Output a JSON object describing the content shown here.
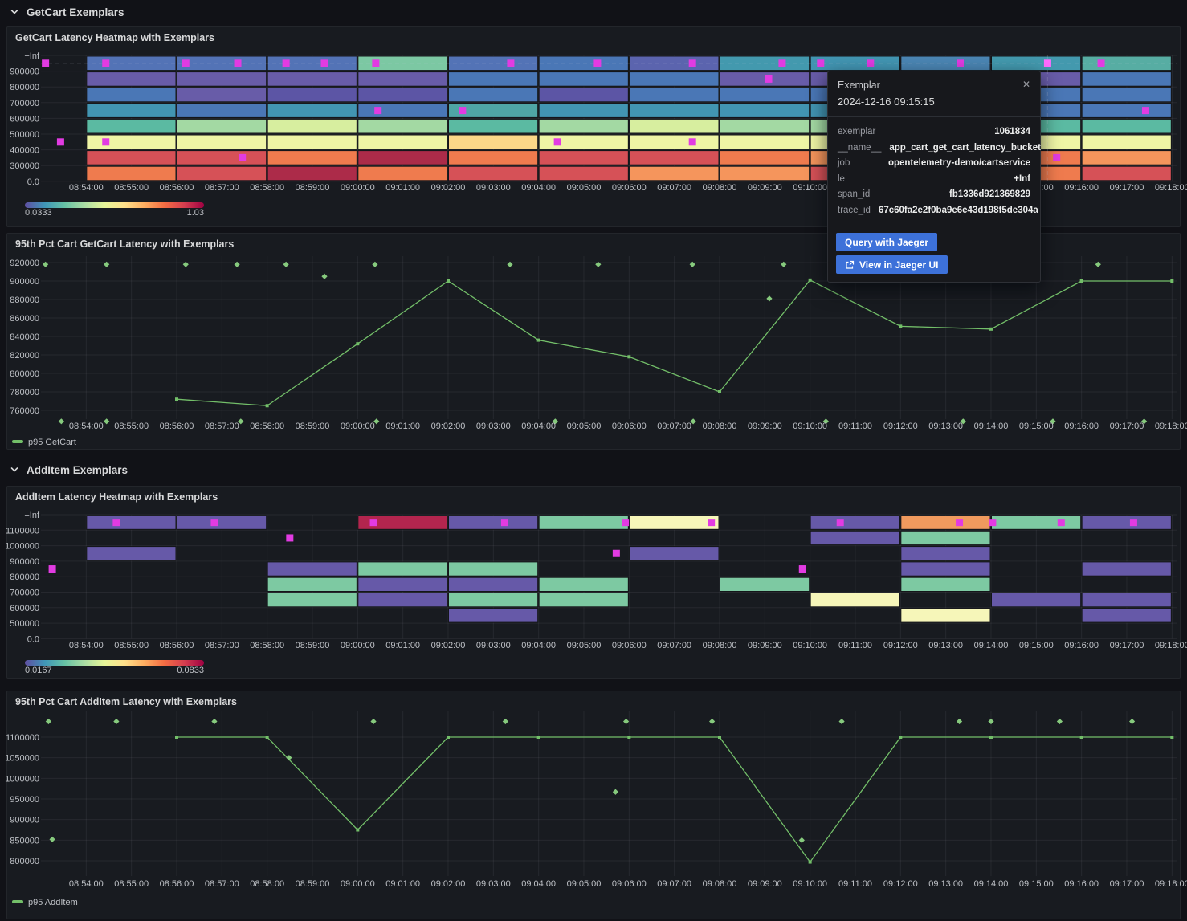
{
  "sections": [
    {
      "title": "GetCart Exemplars"
    },
    {
      "title": "AddItem Exemplars"
    }
  ],
  "time_axis": {
    "start": "08:53:00",
    "labels": [
      "08:54:00",
      "08:55:00",
      "08:56:00",
      "08:57:00",
      "08:58:00",
      "08:59:00",
      "09:00:00",
      "09:01:00",
      "09:02:00",
      "09:03:00",
      "09:04:00",
      "09:05:00",
      "09:06:00",
      "09:07:00",
      "09:08:00",
      "09:09:00",
      "09:10:00",
      "09:11:00",
      "09:12:00",
      "09:13:00",
      "09:14:00",
      "09:15:00",
      "09:16:00",
      "09:17:00",
      "09:18:00"
    ]
  },
  "colors": {
    "exemplar": "#e23be2",
    "exemplar_highlight": "#ff6bff",
    "series_green": "#73bf69",
    "accent_blue": "#3d71d9"
  },
  "chart_data": [
    {
      "type": "heatmap",
      "title": "GetCart Latency Heatmap with Exemplars",
      "y_labels": [
        "+Inf",
        "900000",
        "800000",
        "700000",
        "600000",
        "500000",
        "400000",
        "300000",
        "0.0"
      ],
      "legend": {
        "min": "0.0333",
        "max": "1.03"
      },
      "column_minutes": 2,
      "columns": [
        {
          "start": "08:54:00",
          "colors": [
            "#5373b6",
            "#685ca8",
            "#4a77b6",
            "#4295b2",
            "#5bbaa2",
            "#eff5a5",
            "#d65157",
            "#ef7b4e"
          ]
        },
        {
          "start": "08:56:00",
          "colors": [
            "#5373b6",
            "#685ca8",
            "#685ca8",
            "#4a77b6",
            "#a3d9a3",
            "#eff5a5",
            "#d65157",
            "#d65157"
          ]
        },
        {
          "start": "08:58:00",
          "colors": [
            "#5373b6",
            "#685ca8",
            "#5c55a5",
            "#4295b2",
            "#d7ee9f",
            "#eff5a5",
            "#ef7b4e",
            "#ac2b49"
          ]
        },
        {
          "start": "09:00:00",
          "colors": [
            "#7cc8a3",
            "#685ca8",
            "#5c55a5",
            "#4a77b6",
            "#a3d9a3",
            "#eff5a5",
            "#ac2b49",
            "#ef7b4e"
          ]
        },
        {
          "start": "09:02:00",
          "colors": [
            "#5373b6",
            "#4a77b6",
            "#4a77b6",
            "#4fa5a5",
            "#5bbaa2",
            "#fcd788",
            "#ef7b4e",
            "#d65157"
          ]
        },
        {
          "start": "09:04:00",
          "colors": [
            "#4a77b6",
            "#4a77b6",
            "#5c55a5",
            "#4295b2",
            "#a3d9a3",
            "#eff5a5",
            "#d65157",
            "#d65157"
          ]
        },
        {
          "start": "09:06:00",
          "colors": [
            "#5b64ae",
            "#4a77b6",
            "#4a77b6",
            "#4295b2",
            "#d7ee9f",
            "#eff5a5",
            "#d65157",
            "#f5955c"
          ]
        },
        {
          "start": "09:08:00",
          "colors": [
            "#4399ae",
            "#685ca8",
            "#4a77b6",
            "#4295b2",
            "#a3d9a3",
            "#eff5a5",
            "#ef7b4e",
            "#f5955c"
          ]
        },
        {
          "start": "09:10:00",
          "colors": [
            "#4295b2",
            "#685ca8",
            "#4a77b6",
            "#4295b2",
            "#a3d9a3",
            "#eff5a5",
            "#f5955c",
            "#d65157"
          ]
        },
        {
          "start": "09:12:00",
          "colors": [
            "#4b86b4",
            "#685ca8",
            "#4a77b6",
            "#4295b2",
            "#a3d9a3",
            "#eff5a5",
            "#ef7b4e",
            "#f5955c"
          ]
        },
        {
          "start": "09:14:00",
          "colors": [
            "#4399ae",
            "#685ca8",
            "#4a77b6",
            "#4a77b6",
            "#5bbaa2",
            "#eff5a5",
            "#ef7b4e",
            "#ef7b4e"
          ]
        },
        {
          "start": "09:16:00",
          "colors": [
            "#57ada3",
            "#4a77b6",
            "#4a77b6",
            "#4a77b6",
            "#5bbaa2",
            "#eff5a5",
            "#f5955c",
            "#d65157"
          ]
        }
      ],
      "exemplars": [
        {
          "t": "08:53:06",
          "row": 0
        },
        {
          "t": "08:54:26",
          "row": 0
        },
        {
          "t": "08:56:12",
          "row": 0
        },
        {
          "t": "08:57:21",
          "row": 0
        },
        {
          "t": "08:58:25",
          "row": 0
        },
        {
          "t": "08:59:16",
          "row": 0
        },
        {
          "t": "09:00:24",
          "row": 0
        },
        {
          "t": "09:03:23",
          "row": 0
        },
        {
          "t": "09:05:18",
          "row": 0
        },
        {
          "t": "09:07:24",
          "row": 0
        },
        {
          "t": "09:09:23",
          "row": 0
        },
        {
          "t": "09:10:14",
          "row": 0
        },
        {
          "t": "09:11:20",
          "row": 0
        },
        {
          "t": "09:13:19",
          "row": 0
        },
        {
          "t": "09:15:15",
          "row": 0,
          "highlight": true
        },
        {
          "t": "09:16:26",
          "row": 0
        },
        {
          "t": "09:09:05",
          "row": 1
        },
        {
          "t": "09:00:27",
          "row": 3
        },
        {
          "t": "09:02:19",
          "row": 3
        },
        {
          "t": "09:17:25",
          "row": 3
        },
        {
          "t": "08:53:26",
          "row": 5
        },
        {
          "t": "08:54:26",
          "row": 5
        },
        {
          "t": "09:04:25",
          "row": 5
        },
        {
          "t": "09:07:24",
          "row": 5
        },
        {
          "t": "08:57:27",
          "row": 6
        },
        {
          "t": "09:15:27",
          "row": 6
        }
      ],
      "guides": {
        "h_row": 0,
        "v_time": "09:15:15"
      }
    },
    {
      "type": "line",
      "title": "95th Pct Cart GetCart Latency with Exemplars",
      "y_ticks": [
        "920000",
        "900000",
        "880000",
        "860000",
        "840000",
        "820000",
        "800000",
        "780000",
        "760000"
      ],
      "series": {
        "name": "p95 GetCart",
        "color": "#73bf69",
        "points": [
          [
            "08:56:00",
            772000
          ],
          [
            "08:58:00",
            765000
          ],
          [
            "09:00:00",
            832000
          ],
          [
            "09:02:00",
            900000
          ],
          [
            "09:04:00",
            836000
          ],
          [
            "09:06:00",
            818000
          ],
          [
            "09:08:00",
            780000
          ],
          [
            "09:10:00",
            901000
          ],
          [
            "09:12:00",
            851000
          ],
          [
            "09:14:00",
            848000
          ],
          [
            "09:16:00",
            900000
          ],
          [
            "09:18:00",
            900000
          ]
        ]
      },
      "exemplars": [
        [
          "08:53:06",
          918000
        ],
        [
          "08:54:27",
          918000
        ],
        [
          "08:56:12",
          918000
        ],
        [
          "08:57:20",
          918000
        ],
        [
          "08:58:25",
          918000
        ],
        [
          "09:00:23",
          918000
        ],
        [
          "09:03:22",
          918000
        ],
        [
          "09:05:19",
          918000
        ],
        [
          "09:07:24",
          918000
        ],
        [
          "09:09:25",
          918000
        ],
        [
          "09:16:22",
          918000
        ],
        [
          "08:59:16",
          905000
        ],
        [
          "09:09:06",
          881000
        ],
        [
          "08:53:27",
          748000
        ],
        [
          "08:54:27",
          748000
        ],
        [
          "08:57:25",
          748000
        ],
        [
          "09:00:25",
          748000
        ],
        [
          "09:04:22",
          748000
        ],
        [
          "09:07:25",
          748000
        ],
        [
          "09:10:21",
          748000
        ],
        [
          "09:13:23",
          748000
        ],
        [
          "09:15:22",
          748000
        ],
        [
          "09:17:23",
          748000
        ]
      ]
    },
    {
      "type": "heatmap",
      "title": "AddItem Latency Heatmap with Exemplars",
      "y_labels": [
        "+Inf",
        "1100000",
        "1000000",
        "900000",
        "800000",
        "700000",
        "600000",
        "500000",
        "0.0"
      ],
      "legend": {
        "min": "0.0167",
        "max": "0.0833"
      },
      "column_minutes": 2,
      "columns": [
        {
          "start": "08:54:00",
          "colors": [
            "#6659a8",
            null,
            "#6659a8",
            null,
            null,
            null,
            null,
            null
          ]
        },
        {
          "start": "08:56:00",
          "colors": [
            "#6659a8",
            null,
            null,
            null,
            null,
            null,
            null,
            null
          ]
        },
        {
          "start": "08:58:00",
          "colors": [
            null,
            null,
            null,
            "#6659a8",
            "#7dc9a2",
            "#7dc9a2",
            null,
            null
          ]
        },
        {
          "start": "09:00:00",
          "colors": [
            "#b3254e",
            null,
            null,
            "#7dc9a2",
            "#6659a8",
            "#6659a8",
            null,
            null
          ]
        },
        {
          "start": "09:02:00",
          "colors": [
            "#6659a8",
            null,
            null,
            "#7dc9a2",
            "#6659a8",
            "#7dc9a2",
            "#6659a8",
            null
          ]
        },
        {
          "start": "09:04:00",
          "colors": [
            "#7dc9a2",
            null,
            null,
            null,
            "#7dc9a2",
            "#7dc9a2",
            null,
            null
          ]
        },
        {
          "start": "09:06:00",
          "colors": [
            "#f6f6b9",
            null,
            "#6659a8",
            null,
            null,
            null,
            null,
            null
          ]
        },
        {
          "start": "09:08:00",
          "colors": [
            null,
            null,
            null,
            null,
            "#7dc9a2",
            null,
            null,
            null
          ]
        },
        {
          "start": "09:10:00",
          "colors": [
            "#6659a8",
            "#6659a8",
            null,
            null,
            null,
            "#f6f6b9",
            null,
            null
          ]
        },
        {
          "start": "09:12:00",
          "colors": [
            "#f09a5e",
            "#7dc9a2",
            "#6659a8",
            "#6659a8",
            "#7dc9a2",
            null,
            "#f6f6b9",
            null
          ]
        },
        {
          "start": "09:14:00",
          "colors": [
            "#7dc9a2",
            null,
            null,
            null,
            null,
            "#6659a8",
            null,
            null
          ]
        },
        {
          "start": "09:16:00",
          "colors": [
            "#6659a8",
            null,
            null,
            "#6659a8",
            null,
            "#6659a8",
            "#6659a8",
            null
          ]
        }
      ],
      "exemplars": [
        {
          "t": "08:54:40",
          "row": 0
        },
        {
          "t": "08:56:50",
          "row": 0
        },
        {
          "t": "09:00:21",
          "row": 0
        },
        {
          "t": "09:03:15",
          "row": 0
        },
        {
          "t": "09:05:55",
          "row": 0
        },
        {
          "t": "09:07:49",
          "row": 0
        },
        {
          "t": "09:10:40",
          "row": 0
        },
        {
          "t": "09:13:18",
          "row": 0
        },
        {
          "t": "09:14:02",
          "row": 0
        },
        {
          "t": "09:15:33",
          "row": 0
        },
        {
          "t": "09:17:09",
          "row": 0
        },
        {
          "t": "08:58:30",
          "row": 1
        },
        {
          "t": "09:05:43",
          "row": 2
        },
        {
          "t": "08:53:15",
          "row": 3
        },
        {
          "t": "09:09:50",
          "row": 3
        }
      ]
    },
    {
      "type": "line",
      "title": "95th Pct Cart AddItem Latency with Exemplars",
      "y_ticks": [
        "1100000",
        "1050000",
        "1000000",
        "950000",
        "900000",
        "850000",
        "800000"
      ],
      "series": {
        "name": "p95 AddItem",
        "color": "#73bf69",
        "points": [
          [
            "08:56:00",
            1100000
          ],
          [
            "08:58:00",
            1100000
          ],
          [
            "09:00:00",
            875000
          ],
          [
            "09:02:00",
            1100000
          ],
          [
            "09:04:00",
            1100000
          ],
          [
            "09:06:00",
            1100000
          ],
          [
            "09:08:00",
            1100000
          ],
          [
            "09:10:00",
            797000
          ],
          [
            "09:12:00",
            1100000
          ],
          [
            "09:14:00",
            1100000
          ],
          [
            "09:16:00",
            1100000
          ],
          [
            "09:18:00",
            1100000
          ]
        ]
      },
      "exemplars": [
        [
          "08:53:10",
          1138000
        ],
        [
          "08:54:40",
          1138000
        ],
        [
          "08:56:50",
          1138000
        ],
        [
          "09:00:21",
          1138000
        ],
        [
          "09:03:16",
          1138000
        ],
        [
          "09:05:56",
          1138000
        ],
        [
          "09:07:50",
          1138000
        ],
        [
          "09:10:42",
          1138000
        ],
        [
          "09:13:18",
          1138000
        ],
        [
          "09:14:00",
          1138000
        ],
        [
          "09:15:31",
          1138000
        ],
        [
          "09:17:07",
          1138000
        ],
        [
          "08:53:15",
          852000
        ],
        [
          "08:58:29",
          1050000
        ],
        [
          "09:05:42",
          967000
        ],
        [
          "09:09:49",
          850000
        ]
      ]
    }
  ],
  "gradient_stops": [
    "#5e4fa2",
    "#3f96b7",
    "#66c2a5",
    "#abdda4",
    "#e6f598",
    "#fee08b",
    "#fdae61",
    "#f46d43",
    "#d53e4f",
    "#9e0142"
  ],
  "tooltip": {
    "title": "Exemplar",
    "close_icon": "✕",
    "timestamp": "2024-12-16 09:15:15",
    "fields": [
      {
        "label": "exemplar",
        "value": "1061834"
      },
      {
        "label": "__name__",
        "value": "app_cart_get_cart_latency_bucket"
      },
      {
        "label": "job",
        "value": "opentelemetry-demo/cartservice"
      },
      {
        "label": "le",
        "value": "+Inf"
      },
      {
        "label": "span_id",
        "value": "fb1336d921369829"
      },
      {
        "label": "trace_id",
        "value": "67c60fa2e2f0ba9e6e43d198f5de304a"
      }
    ],
    "query_button": "Query with Jaeger",
    "view_button": "View in Jaeger UI"
  }
}
